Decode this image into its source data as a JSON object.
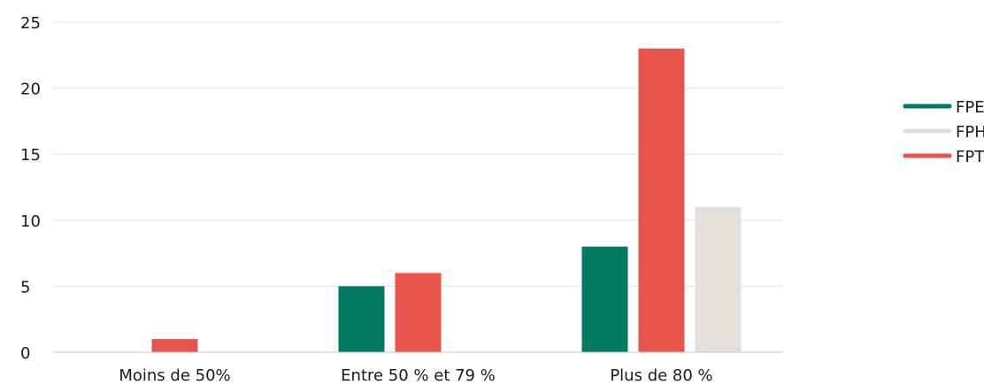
{
  "chart_data": {
    "type": "bar",
    "categories": [
      "Moins de 50%",
      "Entre 50 % et 79 %",
      "Plus de 80 %"
    ],
    "series": [
      {
        "name": "FPE",
        "color": "#007b62",
        "values": [
          0,
          5,
          8
        ]
      },
      {
        "name": "FPT",
        "color": "#e8534a",
        "values": [
          1,
          6,
          23
        ]
      },
      {
        "name": "FPH",
        "color": "#e3e0d9",
        "values": [
          0,
          0,
          11
        ]
      }
    ],
    "legend_order": [
      "FPE",
      "FPH",
      "FPT"
    ],
    "y_ticks": [
      "0",
      "5",
      "10",
      "15",
      "20",
      "25"
    ],
    "ylim": [
      0,
      25
    ],
    "grid": true,
    "legend_position": "right"
  }
}
